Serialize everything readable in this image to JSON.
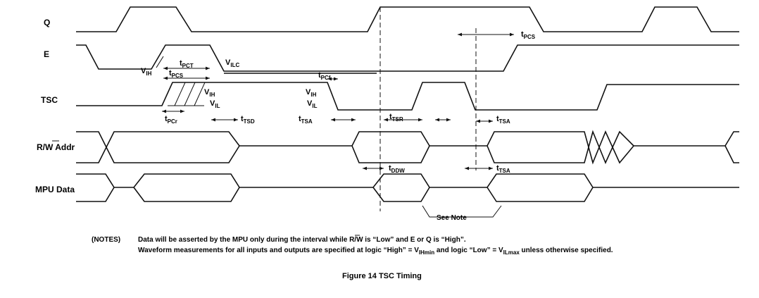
{
  "signals": {
    "q": "Q",
    "e": "E",
    "tsc": "TSC",
    "rw_addr": "R/W Addr",
    "mpu_data": "MPU Data"
  },
  "timing_labels": {
    "vih_e": {
      "main": "V",
      "sub": "IH"
    },
    "tpct": {
      "main": "t",
      "sub": "PCT"
    },
    "tpcs_left": {
      "main": "t",
      "sub": "PCS"
    },
    "vilc": {
      "main": "V",
      "sub": "ILC"
    },
    "vih_tsc1": {
      "main": "V",
      "sub": "IH"
    },
    "vil_tsc1": {
      "main": "V",
      "sub": "IL"
    },
    "tpcr": {
      "main": "t",
      "sub": "PCr"
    },
    "ttsd": {
      "main": "t",
      "sub": "TSD"
    },
    "tpcf": {
      "main": "t",
      "sub": "PCf"
    },
    "vih_tsc2": {
      "main": "V",
      "sub": "IH"
    },
    "vil_tsc2": {
      "main": "V",
      "sub": "IL"
    },
    "ttsa1": {
      "main": "t",
      "sub": "TSA"
    },
    "ttsr": {
      "main": "t",
      "sub": "TSR"
    },
    "ttsa2": {
      "main": "t",
      "sub": "TSA"
    },
    "tddw": {
      "main": "t",
      "sub": "DDW"
    },
    "ttsa3": {
      "main": "t",
      "sub": "TSA"
    },
    "tpcs_right": {
      "main": "t",
      "sub": "PCS"
    }
  },
  "see_note": "See Note",
  "notes": {
    "label": "(NOTES)",
    "line1": "Data will be asserted by the MPU only during the interval while R/W is “Low” and E or Q is “High”.",
    "line2_a": "Waveform measurements for all inputs and outputs are specified at logic “High” = V",
    "line2_sub1": "IHmin",
    "line2_b": " and logic “Low” = V",
    "line2_sub2": "ILmax",
    "line2_c": " unless otherwise specified."
  },
  "caption": "Figure 14  TSC Timing"
}
